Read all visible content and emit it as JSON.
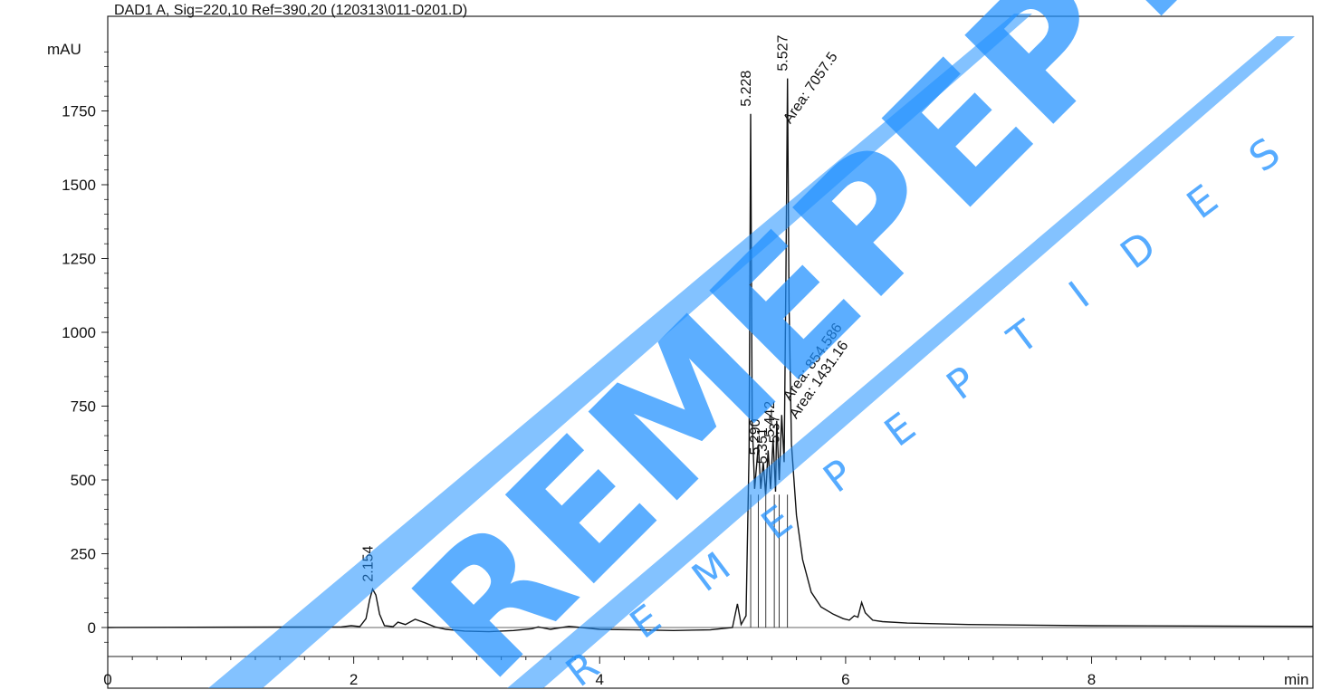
{
  "chart_data": {
    "type": "line",
    "title": "DAD1 A, Sig=220,10 Ref=390,20 (120313\\011-0201.D)",
    "ylabel": "mAU",
    "xlabel": "min",
    "xlim": [
      0,
      9.8
    ],
    "ylim": [
      -100,
      1960
    ],
    "xticks": [
      0,
      2,
      4,
      6,
      8
    ],
    "yticks": [
      0,
      250,
      500,
      750,
      1000,
      1250,
      1500,
      1750
    ],
    "grid": false,
    "series": [
      {
        "values": [
          [
            0.0,
            0
          ],
          [
            1.9,
            2
          ],
          [
            1.98,
            6
          ],
          [
            2.05,
            3
          ],
          [
            2.1,
            30
          ],
          [
            2.13,
            95
          ],
          [
            2.154,
            130
          ],
          [
            2.18,
            110
          ],
          [
            2.21,
            45
          ],
          [
            2.25,
            6
          ],
          [
            2.32,
            3
          ],
          [
            2.36,
            18
          ],
          [
            2.42,
            10
          ],
          [
            2.5,
            28
          ],
          [
            2.58,
            16
          ],
          [
            2.66,
            2
          ],
          [
            2.75,
            -6
          ],
          [
            2.9,
            -12
          ],
          [
            3.1,
            -14
          ],
          [
            3.3,
            -10
          ],
          [
            3.45,
            -4
          ],
          [
            3.5,
            2
          ],
          [
            3.6,
            -6
          ],
          [
            3.75,
            4
          ],
          [
            3.8,
            2
          ],
          [
            4.0,
            -6
          ],
          [
            4.3,
            -8
          ],
          [
            4.6,
            -10
          ],
          [
            4.9,
            -8
          ],
          [
            5.08,
            0
          ],
          [
            5.12,
            80
          ],
          [
            5.15,
            10
          ],
          [
            5.19,
            40
          ],
          [
            5.215,
            600
          ],
          [
            5.228,
            1740
          ],
          [
            5.24,
            700
          ],
          [
            5.26,
            470
          ],
          [
            5.29,
            620
          ],
          [
            5.31,
            470
          ],
          [
            5.33,
            560
          ],
          [
            5.35,
            450
          ],
          [
            5.37,
            600
          ],
          [
            5.39,
            470
          ],
          [
            5.41,
            640
          ],
          [
            5.43,
            460
          ],
          [
            5.44,
            700
          ],
          [
            5.46,
            500
          ],
          [
            5.48,
            720
          ],
          [
            5.5,
            560
          ],
          [
            5.515,
            1200
          ],
          [
            5.527,
            1860
          ],
          [
            5.54,
            1100
          ],
          [
            5.56,
            620
          ],
          [
            5.6,
            380
          ],
          [
            5.65,
            230
          ],
          [
            5.72,
            120
          ],
          [
            5.8,
            70
          ],
          [
            5.9,
            45
          ],
          [
            5.98,
            30
          ],
          [
            6.03,
            25
          ],
          [
            6.07,
            40
          ],
          [
            6.1,
            35
          ],
          [
            6.13,
            85
          ],
          [
            6.16,
            50
          ],
          [
            6.22,
            25
          ],
          [
            6.3,
            20
          ],
          [
            6.5,
            15
          ],
          [
            7.0,
            10
          ],
          [
            8.0,
            6
          ],
          [
            9.8,
            4
          ]
        ]
      }
    ],
    "peak_labels": [
      {
        "x": 2.154,
        "y": 130,
        "text": "2.154"
      },
      {
        "x": 5.228,
        "y": 1740,
        "text": "5.228"
      },
      {
        "x": 5.527,
        "y": 1860,
        "text": "5.527"
      },
      {
        "x": 5.55,
        "y": 1680,
        "text": "Area: 7057.5"
      },
      {
        "x": 5.3,
        "y": 560,
        "text": "5.290"
      },
      {
        "x": 5.36,
        "y": 530,
        "text": "5.351"
      },
      {
        "x": 5.42,
        "y": 620,
        "text": "5.442"
      },
      {
        "x": 5.46,
        "y": 600,
        "text": "5.37"
      },
      {
        "x": 5.55,
        "y": 740,
        "text": "Area: 854.586"
      },
      {
        "x": 5.6,
        "y": 680,
        "text": "Area: 1431.16"
      }
    ]
  },
  "watermark": {
    "brand": "REMEPEPTIDES",
    "site": "REMEPEPTIDES.COM",
    "color": "#1e90ff"
  }
}
